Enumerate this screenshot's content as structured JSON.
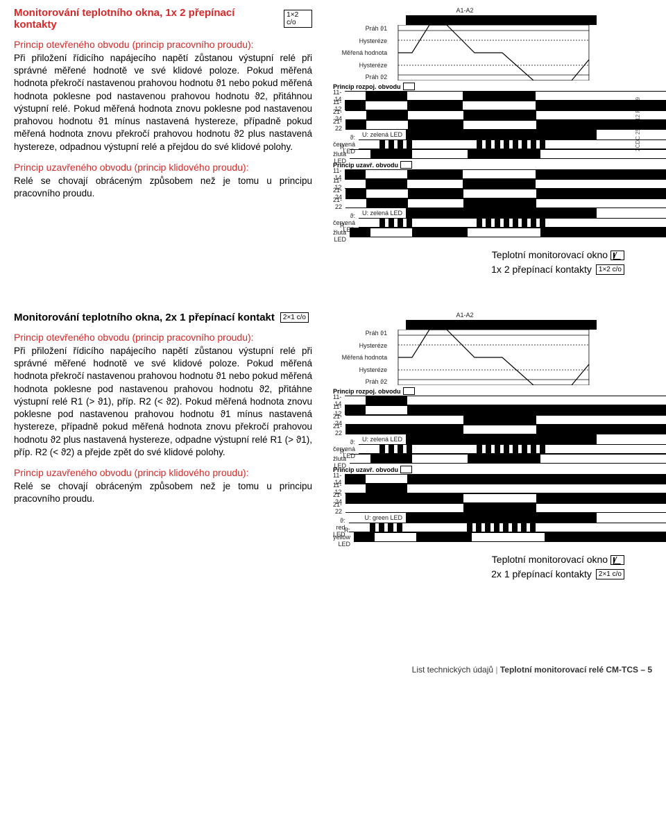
{
  "colors": {
    "accent": "#d62828",
    "text": "#000000",
    "grid": "#222222",
    "bg": "#ffffff"
  },
  "section1": {
    "title": "Monitorování teplotního okna, 1x 2 přepínací kontakty",
    "badge": "1×2 c/o",
    "open_heading": "Princip otevřeného obvodu (princip pracovního proudu):",
    "open_body": "Při přiložení řídicího napájecího napětí zůstanou výstupní relé při správné měřené hodnotě ve své klidové poloze. Pokud měřená hodnota překročí nastavenou prahovou hodnotu ϑ1 nebo pokud měřená hodnota poklesne pod nastavenou prahovou hodnotu ϑ2, přitáhnou výstupní relé. Pokud měřená hodnota znovu poklesne pod nastavenou prahovou hodnotu ϑ1 mínus nastavená hystereze, případně pokud měřená hodnota znovu překročí prahovou hodnotu ϑ2 plus nastavená hystereze, odpadnou výstupní relé a přejdou do své klidové polohy.",
    "closed_heading": "Princip uzavřeného obvodu (princip klidového proudu):",
    "closed_body": "Relé se chovají obráceným způsobem než je tomu u principu pracovního proudu.",
    "caption_line1": "Teplotní monitorovací okno",
    "caption_line2": "1x 2 přepínací kontakty",
    "caption_badge": "1×2 c/o",
    "vert_code": "2CDC 252 012 F0209"
  },
  "section2": {
    "title": "Monitorování teplotního okna, 2x 1 přepínací kontakt",
    "badge": "2×1 c/o",
    "open_heading": "Princip otevřeného obvodu (princip pracovního proudu):",
    "open_body": "Při přiložení řídicího napájecího napětí zůstanou výstupní relé při správné měřené hodnotě ve své klidové poloze. Pokud měřená hodnota překročí nastavenou prahovou hodnotu ϑ1 nebo pokud měřená hodnota poklesne pod nastavenou prahovou hodnotu ϑ2, přitáhne výstupní relé R1 (> ϑ1), příp. R2 (< ϑ2). Pokud měřená hodnota znovu poklesne pod nastavenou prahovou hodnotu ϑ1 mínus nastavená hystereze, případně pokud měřená hodnota znovu překročí prahovou hodnotu ϑ2 plus nastavená hystereze, odpadne výstupní relé R1 (> ϑ1), příp. R2 (< ϑ2) a přejde zpět do své klidové polohy.",
    "closed_heading": "Princip uzavřeného obvodu (princip klidového proudu):",
    "closed_body": "Relé se chovají obráceným způsobem než je tomu u principu pracovního proudu.",
    "caption_line1": "Teplotní monitorovací okno",
    "caption_line2": "2x 1 přepínací kontakty",
    "caption_badge": "2×1 c/o"
  },
  "diagram1": {
    "top_label": "A1-A2",
    "envelope_labels": [
      "Práh ϑ1",
      "Hysteréze",
      "Měřená hodnota",
      "Hysteréze",
      "Práh ϑ2"
    ],
    "group_open": "Princip rozpoj. obvodu",
    "group_closed": "Princip uzavř. obvodu",
    "rows_open": [
      {
        "label": "11-14",
        "seg": [
          [
            "gap",
            30
          ],
          [
            "fill",
            60
          ],
          [
            "gap",
            80
          ],
          [
            "fill",
            105
          ],
          [
            "gap",
            200
          ]
        ]
      },
      {
        "label": "11-12",
        "seg": [
          [
            "fill",
            30
          ],
          [
            "gap",
            60
          ],
          [
            "fill",
            80
          ],
          [
            "gap",
            105
          ],
          [
            "fill",
            200
          ]
        ]
      },
      {
        "label": "21-24",
        "seg": [
          [
            "gap",
            30
          ],
          [
            "fill",
            60
          ],
          [
            "gap",
            80
          ],
          [
            "fill",
            105
          ],
          [
            "gap",
            200
          ]
        ]
      },
      {
        "label": "21-22",
        "seg": [
          [
            "fill",
            30
          ],
          [
            "gap",
            60
          ],
          [
            "fill",
            80
          ],
          [
            "gap",
            105
          ],
          [
            "fill",
            200
          ]
        ]
      },
      {
        "label": "U: zelená LED",
        "seg": [
          [
            "fill",
            275
          ]
        ]
      },
      {
        "label": "ϑ: červená LED",
        "seg": [
          [
            "gap",
            30
          ],
          [
            "pulse",
            60
          ],
          [
            "gap",
            80
          ],
          [
            "pulse",
            105
          ],
          [
            "gap",
            200
          ]
        ]
      },
      {
        "label": "R: žlutá LED",
        "seg": [
          [
            "gap",
            30
          ],
          [
            "fill",
            60
          ],
          [
            "gap",
            80
          ],
          [
            "fill",
            105
          ],
          [
            "gap",
            200
          ]
        ]
      }
    ],
    "rows_closed": [
      {
        "label": "11-14",
        "seg": [
          [
            "fill",
            30
          ],
          [
            "gap",
            60
          ],
          [
            "fill",
            80
          ],
          [
            "gap",
            105
          ],
          [
            "fill",
            200
          ]
        ]
      },
      {
        "label": "11-12",
        "seg": [
          [
            "gap",
            30
          ],
          [
            "fill",
            60
          ],
          [
            "gap",
            80
          ],
          [
            "fill",
            105
          ],
          [
            "gap",
            200
          ]
        ]
      },
      {
        "label": "21-24",
        "seg": [
          [
            "fill",
            30
          ],
          [
            "gap",
            60
          ],
          [
            "fill",
            80
          ],
          [
            "gap",
            105
          ],
          [
            "fill",
            200
          ]
        ]
      },
      {
        "label": "21-22",
        "seg": [
          [
            "gap",
            30
          ],
          [
            "fill",
            60
          ],
          [
            "gap",
            80
          ],
          [
            "fill",
            105
          ],
          [
            "gap",
            200
          ]
        ]
      },
      {
        "label": "U: zelená LED",
        "seg": [
          [
            "fill",
            275
          ]
        ]
      },
      {
        "label": "ϑ: červená LED",
        "seg": [
          [
            "gap",
            30
          ],
          [
            "pulse",
            60
          ],
          [
            "gap",
            80
          ],
          [
            "pulse",
            105
          ],
          [
            "gap",
            200
          ]
        ]
      },
      {
        "label": "R: žlutá LED",
        "seg": [
          [
            "fill",
            30
          ],
          [
            "gap",
            60
          ],
          [
            "fill",
            80
          ],
          [
            "gap",
            105
          ],
          [
            "fill",
            200
          ]
        ]
      }
    ]
  },
  "diagram2": {
    "top_label": "A1-A2",
    "envelope_labels": [
      "Práh ϑ1",
      "Hysteréze",
      "Měřená hodnota",
      "Hysteréze",
      "Práh ϑ2"
    ],
    "group_open": "Princip rozpoj. obvodu",
    "group_closed": "Princip uzavř. obvodu",
    "rows_open": [
      {
        "label": "11-14",
        "seg": [
          [
            "gap",
            30
          ],
          [
            "fill",
            60
          ],
          [
            "gap",
            185
          ],
          [
            "gap",
            200
          ]
        ]
      },
      {
        "label": "11-12",
        "seg": [
          [
            "fill",
            30
          ],
          [
            "gap",
            60
          ],
          [
            "fill",
            185
          ],
          [
            "fill",
            200
          ]
        ]
      },
      {
        "label": "21-24",
        "seg": [
          [
            "gap",
            170
          ],
          [
            "fill",
            105
          ],
          [
            "gap",
            200
          ]
        ]
      },
      {
        "label": "21-22",
        "seg": [
          [
            "fill",
            170
          ],
          [
            "gap",
            105
          ],
          [
            "fill",
            200
          ]
        ]
      },
      {
        "label": "U: zelená LED",
        "seg": [
          [
            "fill",
            275
          ]
        ]
      },
      {
        "label": "ϑ: červená LED",
        "seg": [
          [
            "gap",
            30
          ],
          [
            "pulse",
            60
          ],
          [
            "gap",
            80
          ],
          [
            "pulse",
            105
          ],
          [
            "gap",
            200
          ]
        ]
      },
      {
        "label": "R: žlutá LED",
        "seg": [
          [
            "gap",
            30
          ],
          [
            "fill",
            60
          ],
          [
            "gap",
            80
          ],
          [
            "fill",
            105
          ],
          [
            "gap",
            200
          ]
        ]
      }
    ],
    "rows_closed": [
      {
        "label": "11-14",
        "seg": [
          [
            "fill",
            30
          ],
          [
            "gap",
            60
          ],
          [
            "fill",
            185
          ],
          [
            "fill",
            200
          ]
        ]
      },
      {
        "label": "11-12",
        "seg": [
          [
            "gap",
            30
          ],
          [
            "fill",
            60
          ],
          [
            "gap",
            185
          ],
          [
            "gap",
            200
          ]
        ]
      },
      {
        "label": "21-24",
        "seg": [
          [
            "fill",
            170
          ],
          [
            "gap",
            105
          ],
          [
            "fill",
            200
          ]
        ]
      },
      {
        "label": "21-22",
        "seg": [
          [
            "gap",
            170
          ],
          [
            "fill",
            105
          ],
          [
            "gap",
            200
          ]
        ]
      },
      {
        "label": "U: green LED",
        "seg": [
          [
            "fill",
            275
          ]
        ]
      },
      {
        "label": "ϑ: red LED",
        "seg": [
          [
            "gap",
            30
          ],
          [
            "pulse",
            60
          ],
          [
            "gap",
            80
          ],
          [
            "pulse",
            105
          ],
          [
            "gap",
            200
          ]
        ]
      },
      {
        "label": "R: yellow LED",
        "seg": [
          [
            "fill",
            30
          ],
          [
            "gap",
            60
          ],
          [
            "fill",
            80
          ],
          [
            "gap",
            105
          ],
          [
            "fill",
            200
          ]
        ]
      }
    ]
  },
  "footer": {
    "left": "List technických údajů",
    "right": "Teplotní monitorovací relé CM-TCS – 5"
  }
}
